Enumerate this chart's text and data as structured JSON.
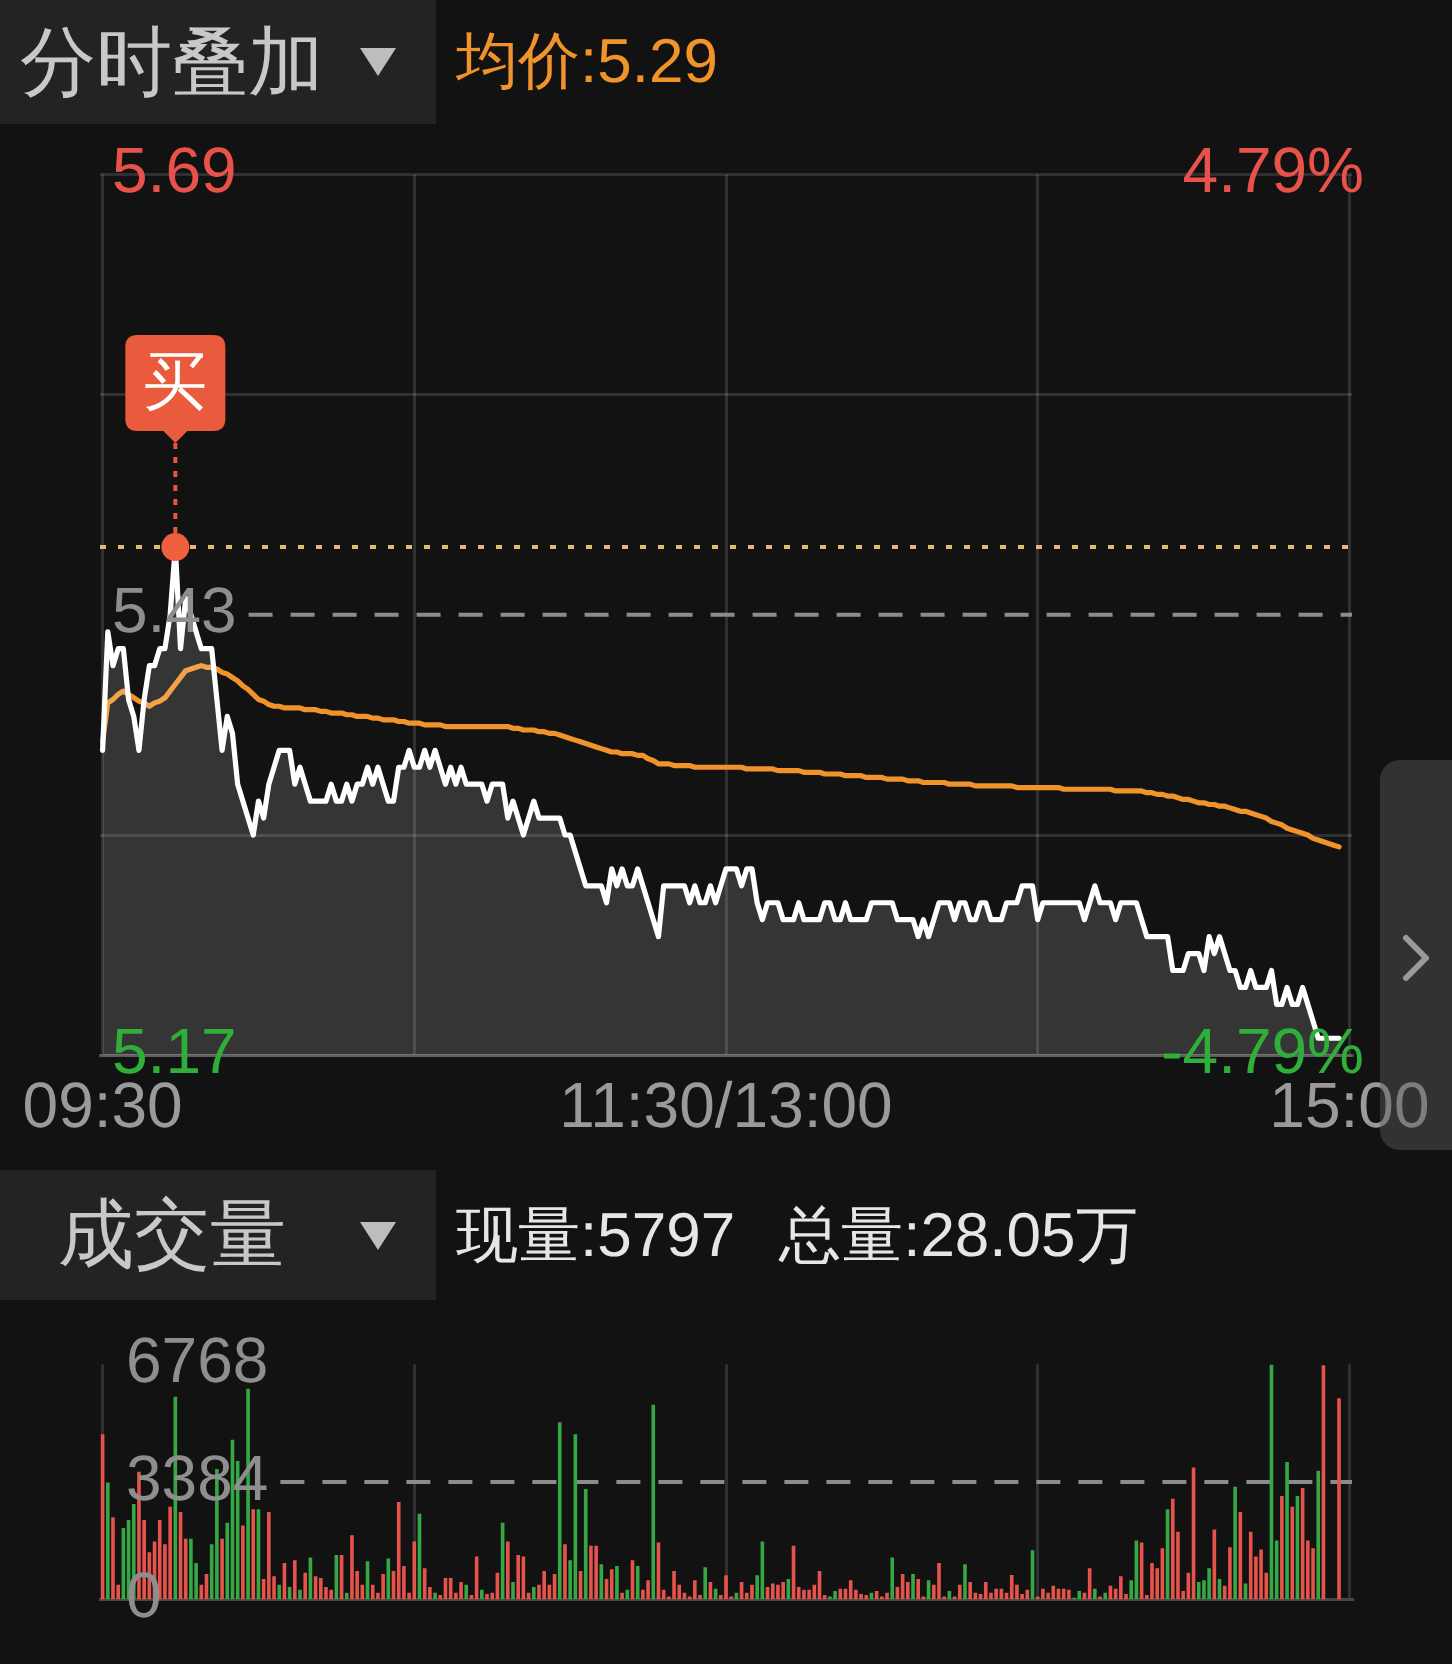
{
  "chart_data": [
    {
      "type": "line",
      "title": "分时叠加",
      "legend": "top left",
      "marker": "none",
      "grid": true,
      "categories": [
        "09:30",
        null,
        null,
        null,
        null,
        null,
        null,
        null,
        null,
        null,
        null,
        null,
        null,
        null,
        null,
        null,
        null,
        null,
        null,
        null,
        null,
        null,
        null,
        null,
        null,
        null,
        null,
        null,
        null,
        null,
        null,
        null,
        null,
        null,
        null,
        null,
        null,
        null,
        null,
        null,
        null,
        null,
        null,
        null,
        null,
        null,
        null,
        null,
        null,
        null,
        null,
        null,
        null,
        null,
        null,
        null,
        null,
        null,
        null,
        null,
        null,
        null,
        null,
        null,
        null,
        null,
        null,
        null,
        null,
        null,
        null,
        null,
        null,
        null,
        null,
        null,
        null,
        null,
        null,
        null,
        null,
        null,
        null,
        null,
        null,
        null,
        null,
        null,
        null,
        null,
        null,
        null,
        null,
        null,
        null,
        null,
        null,
        null,
        null,
        null,
        null,
        null,
        null,
        null,
        null,
        null,
        null,
        null,
        null,
        null,
        null,
        null,
        null,
        null,
        null,
        null,
        null,
        null,
        null,
        null,
        "11:30/13:00",
        null,
        null,
        null,
        null,
        null,
        null,
        null,
        null,
        null,
        null,
        null,
        null,
        null,
        null,
        null,
        null,
        null,
        null,
        null,
        null,
        null,
        null,
        null,
        null,
        null,
        null,
        null,
        null,
        null,
        null,
        null,
        null,
        null,
        null,
        null,
        null,
        null,
        null,
        null,
        null,
        null,
        null,
        null,
        null,
        null,
        null,
        null,
        null,
        null,
        null,
        null,
        null,
        null,
        null,
        null,
        null,
        null,
        null,
        null,
        null,
        null,
        null,
        null,
        null,
        null,
        null,
        null,
        null,
        null,
        null,
        null,
        null,
        null,
        null,
        null,
        null,
        null,
        null,
        null,
        null,
        null,
        null,
        null,
        null,
        null,
        null,
        null,
        null,
        null,
        null,
        null,
        null,
        null,
        null,
        null,
        null,
        null,
        null,
        null,
        null,
        null,
        null,
        null,
        null,
        null,
        null,
        null,
        null,
        null,
        null,
        null,
        null,
        null,
        null,
        null,
        null,
        null,
        null,
        null,
        "15:00"
      ],
      "series": [
        {
          "type": "area",
          "color": "#ffffff",
          "values": [
            5.35,
            5.42,
            5.4,
            5.41,
            5.41,
            5.38,
            5.37,
            5.35,
            5.38,
            5.4,
            5.4,
            5.41,
            5.41,
            5.43,
            5.47,
            5.41,
            5.44,
            5.43,
            5.42,
            5.41,
            5.41,
            5.41,
            5.38,
            5.35,
            5.37,
            5.36,
            5.33,
            5.32,
            5.31,
            5.3,
            5.32,
            5.31,
            5.33,
            5.34,
            5.35,
            5.35,
            5.35,
            5.33,
            5.34,
            5.33,
            5.32,
            5.32,
            5.32,
            5.32,
            5.33,
            5.32,
            5.32,
            5.33,
            5.32,
            5.33,
            5.33,
            5.34,
            5.33,
            5.34,
            5.33,
            5.32,
            5.32,
            5.34,
            5.34,
            5.35,
            5.34,
            5.34,
            5.35,
            5.34,
            5.35,
            5.34,
            5.33,
            5.34,
            5.33,
            5.34,
            5.33,
            5.33,
            5.33,
            5.33,
            5.32,
            5.33,
            5.33,
            5.33,
            5.31,
            5.32,
            5.31,
            5.3,
            5.31,
            5.32,
            5.31,
            5.31,
            5.31,
            5.31,
            5.31,
            5.3,
            5.3,
            5.29,
            5.28,
            5.27,
            5.27,
            5.27,
            5.27,
            5.26,
            5.28,
            5.27,
            5.28,
            5.27,
            5.27,
            5.28,
            5.27,
            5.26,
            5.25,
            5.24,
            5.27,
            5.27,
            5.27,
            5.27,
            5.27,
            5.26,
            5.27,
            5.26,
            5.26,
            5.27,
            5.26,
            5.27,
            5.28,
            5.28,
            5.28,
            5.27,
            5.28,
            5.28,
            5.26,
            5.25,
            5.26,
            5.26,
            5.26,
            5.25,
            5.25,
            5.25,
            5.26,
            5.25,
            5.25,
            5.25,
            5.25,
            5.26,
            5.26,
            5.25,
            5.25,
            5.26,
            5.25,
            5.25,
            5.25,
            5.25,
            5.26,
            5.26,
            5.26,
            5.26,
            5.26,
            5.25,
            5.25,
            5.25,
            5.25,
            5.24,
            5.25,
            5.24,
            5.25,
            5.26,
            5.26,
            5.26,
            5.25,
            5.26,
            5.26,
            5.25,
            5.25,
            5.26,
            5.26,
            5.25,
            5.25,
            5.25,
            5.26,
            5.26,
            5.26,
            5.27,
            5.27,
            5.27,
            5.25,
            5.26,
            5.26,
            5.26,
            5.26,
            5.26,
            5.26,
            5.26,
            5.26,
            5.25,
            5.26,
            5.27,
            5.26,
            5.26,
            5.26,
            5.25,
            5.26,
            5.26,
            5.26,
            5.26,
            5.25,
            5.24,
            5.24,
            5.24,
            5.24,
            5.24,
            5.22,
            5.22,
            5.22,
            5.23,
            5.23,
            5.23,
            5.22,
            5.24,
            5.23,
            5.24,
            5.23,
            5.22,
            5.22,
            5.21,
            5.21,
            5.22,
            5.21,
            5.21,
            5.21,
            5.22,
            5.2,
            5.2,
            5.21,
            5.2,
            5.2,
            5.21,
            5.2,
            5.19,
            5.18,
            5.18,
            5.18,
            5.18,
            5.18,
            null,
            null
          ]
        },
        {
          "type": "line",
          "name": "均价:5.29",
          "color": "#f0932b",
          "values": [
            5.355,
            5.378,
            5.38,
            5.383,
            5.385,
            5.383,
            5.381,
            5.379,
            5.378,
            5.376,
            5.378,
            5.379,
            5.381,
            5.385,
            5.389,
            5.393,
            5.397,
            5.398,
            5.399,
            5.4,
            5.399,
            5.399,
            5.398,
            5.396,
            5.395,
            5.393,
            5.391,
            5.388,
            5.386,
            5.383,
            5.38,
            5.379,
            5.377,
            5.376,
            5.376,
            5.375,
            5.375,
            5.375,
            5.375,
            5.374,
            5.374,
            5.374,
            5.373,
            5.373,
            5.372,
            5.372,
            5.372,
            5.371,
            5.371,
            5.37,
            5.37,
            5.37,
            5.369,
            5.369,
            5.368,
            5.368,
            5.368,
            5.367,
            5.367,
            5.366,
            5.366,
            5.366,
            5.365,
            5.365,
            5.365,
            5.365,
            5.364,
            5.364,
            5.364,
            5.364,
            5.364,
            5.364,
            5.364,
            5.364,
            5.364,
            5.364,
            5.364,
            5.364,
            5.364,
            5.363,
            5.363,
            5.362,
            5.362,
            5.362,
            5.361,
            5.361,
            5.36,
            5.36,
            5.359,
            5.358,
            5.357,
            5.356,
            5.355,
            5.354,
            5.353,
            5.352,
            5.351,
            5.35,
            5.349,
            5.349,
            5.348,
            5.348,
            5.348,
            5.347,
            5.347,
            5.345,
            5.344,
            5.342,
            5.342,
            5.342,
            5.341,
            5.341,
            5.341,
            5.341,
            5.34,
            5.34,
            5.34,
            5.34,
            5.34,
            5.34,
            5.34,
            5.34,
            5.34,
            5.34,
            5.339,
            5.339,
            5.339,
            5.339,
            5.339,
            5.339,
            5.338,
            5.338,
            5.338,
            5.338,
            5.338,
            5.337,
            5.337,
            5.337,
            5.337,
            5.336,
            5.336,
            5.336,
            5.336,
            5.335,
            5.335,
            5.335,
            5.335,
            5.334,
            5.334,
            5.334,
            5.334,
            5.333,
            5.333,
            5.333,
            5.333,
            5.332,
            5.332,
            5.332,
            5.331,
            5.331,
            5.331,
            5.331,
            5.331,
            5.33,
            5.33,
            5.33,
            5.33,
            5.33,
            5.329,
            5.329,
            5.329,
            5.329,
            5.329,
            5.329,
            5.329,
            5.329,
            5.328,
            5.328,
            5.328,
            5.328,
            5.328,
            5.328,
            5.328,
            5.328,
            5.328,
            5.327,
            5.327,
            5.327,
            5.327,
            5.327,
            5.327,
            5.327,
            5.327,
            5.327,
            5.327,
            5.326,
            5.326,
            5.326,
            5.326,
            5.326,
            5.326,
            5.325,
            5.325,
            5.324,
            5.324,
            5.323,
            5.323,
            5.322,
            5.321,
            5.321,
            5.32,
            5.319,
            5.319,
            5.318,
            5.318,
            5.317,
            5.317,
            5.316,
            5.315,
            5.314,
            5.314,
            5.313,
            5.312,
            5.311,
            5.31,
            5.308,
            5.307,
            5.306,
            5.304,
            5.303,
            5.302,
            5.301,
            5.3,
            5.298,
            5.297,
            5.296,
            5.295,
            5.294,
            5.293,
            null,
            null
          ]
        }
      ],
      "ylim": [
        5.17,
        5.69
      ],
      "yticks": [
        5.17,
        {
          "value": 5.3,
          "label": null
        },
        5.43,
        {
          "value": 5.56,
          "label": null
        },
        5.69
      ],
      "y2lim": [
        -4.79,
        4.79
      ],
      "y2ticks": [
        {
          "value": -4.79,
          "label": "-4.79%"
        },
        {
          "value": 4.79,
          "label": "4.79%"
        }
      ],
      "ref_lines": [
        {
          "axis": "y",
          "value": 5.43,
          "color": "#8c8c8c",
          "line_style": "dashed"
        },
        {
          "axis": "y",
          "value": 5.47,
          "color": "#e9b870",
          "line_style": "dotted"
        }
      ],
      "annotations": [
        {
          "text": "买",
          "y": 5.47
        }
      ]
    },
    {
      "type": "bar",
      "title": "成交量",
      "annotations": [
        "现量:5797",
        "总量:28.05万"
      ],
      "categories": [
        null,
        null,
        null,
        null,
        null,
        null,
        null,
        null,
        null,
        null,
        null,
        null,
        null,
        null,
        null,
        null,
        null,
        null,
        null,
        null,
        null,
        null,
        null,
        null,
        null,
        null,
        null,
        null,
        null,
        null,
        null,
        null,
        null,
        null,
        null,
        null,
        null,
        null,
        null,
        null,
        null,
        null,
        null,
        null,
        null,
        null,
        null,
        null,
        null,
        null,
        null,
        null,
        null,
        null,
        null,
        null,
        null,
        null,
        null,
        null,
        null,
        null,
        null,
        null,
        null,
        null,
        null,
        null,
        null,
        null,
        null,
        null,
        null,
        null,
        null,
        null,
        null,
        null,
        null,
        null,
        null,
        null,
        null,
        null,
        null,
        null,
        null,
        null,
        null,
        null,
        null,
        null,
        null,
        null,
        null,
        null,
        null,
        null,
        null,
        null,
        null,
        null,
        null,
        null,
        null,
        null,
        null,
        null,
        null,
        null,
        null,
        null,
        null,
        null,
        null,
        null,
        null,
        null,
        null,
        null,
        null,
        null,
        null,
        null,
        null,
        null,
        null,
        null,
        null,
        null,
        null,
        null,
        null,
        null,
        null,
        null,
        null,
        null,
        null,
        null,
        null,
        null,
        null,
        null,
        null,
        null,
        null,
        null,
        null,
        null,
        null,
        null,
        null,
        null,
        null,
        null,
        null,
        null,
        null,
        null,
        null,
        null,
        null,
        null,
        null,
        null,
        null,
        null,
        null,
        null,
        null,
        null,
        null,
        null,
        null,
        null,
        null,
        null,
        null,
        null,
        null,
        null,
        null,
        null,
        null,
        null,
        null,
        null,
        null,
        null,
        null,
        null,
        null,
        null,
        null,
        null,
        null,
        null,
        null,
        null,
        null,
        null,
        null,
        null,
        null,
        null,
        null,
        null,
        null,
        null,
        null,
        null,
        null,
        null,
        null,
        null,
        null,
        null,
        null,
        null,
        null,
        null,
        null,
        null,
        null,
        null,
        null,
        null,
        null,
        null,
        null,
        null,
        null,
        null,
        null,
        null,
        null,
        null,
        null,
        null,
        null
      ],
      "values": [
        4760,
        3370,
        2370,
        430,
        2060,
        2290,
        2750,
        3680,
        2290,
        1360,
        1670,
        2290,
        1590,
        2670,
        5840,
        2520,
        1750,
        1750,
        1050,
        430,
        740,
        1590,
        3760,
        1750,
        2210,
        4600,
        3990,
        2130,
        6070,
        2600,
        2600,
        590,
        2520,
        670,
        430,
        1050,
        360,
        1130,
        280,
        770,
        1210,
        670,
        620,
        360,
        280,
        1280,
        1280,
        200,
        1850,
        820,
        430,
        1100,
        430,
        200,
        740,
        1180,
        820,
        2810,
        970,
        200,
        1670,
        2470,
        900,
        360,
        200,
        130,
        620,
        620,
        200,
        510,
        430,
        130,
        1240,
        280,
        160,
        200,
        770,
        2210,
        1670,
        510,
        1280,
        1240,
        200,
        360,
        430,
        820,
        430,
        740,
        5100,
        1590,
        1130,
        4760,
        820,
        3180,
        1550,
        1550,
        1020,
        590,
        870,
        970,
        200,
        280,
        1130,
        970,
        280,
        560,
        5610,
        1640,
        280,
        90,
        820,
        430,
        200,
        90,
        560,
        130,
        930,
        510,
        310,
        130,
        700,
        90,
        200,
        510,
        200,
        430,
        700,
        1670,
        360,
        460,
        430,
        510,
        590,
        1550,
        360,
        280,
        280,
        430,
        820,
        130,
        90,
        250,
        310,
        310,
        560,
        280,
        160,
        130,
        200,
        250,
        90,
        200,
        1210,
        360,
        740,
        510,
        740,
        590,
        90,
        560,
        430,
        1050,
        90,
        250,
        90,
        430,
        1020,
        510,
        200,
        160,
        510,
        200,
        310,
        310,
        200,
        710,
        430,
        160,
        280,
        1420,
        90,
        310,
        200,
        400,
        310,
        310,
        280,
        50,
        250,
        200,
        900,
        310,
        90,
        200,
        400,
        310,
        670,
        160,
        560,
        1700,
        1640,
        130,
        1050,
        900,
        1480,
        2600,
        2900,
        1950,
        250,
        770,
        3800,
        510,
        560,
        900,
        2020,
        590,
        400,
        1510,
        3250,
        2520,
        460,
        1950,
        1240,
        1440,
        770,
        6768,
        1700,
        2980,
        3960,
        2670,
        2980,
        3210,
        1700,
        1480,
        3710,
        6740,
        null,
        null,
        5797,
        null,
        null
      ],
      "colors": [
        "#e5534b",
        "#35a843",
        "#e5534b",
        "#e5534b",
        "#35a843",
        "#35a843",
        "#35a843",
        "#e5534b",
        "#e5534b",
        "#e5534b",
        "#e5534b",
        "#e5534b",
        "#e5534b",
        "#e5534b",
        "#35a843",
        "#e5534b",
        "#e5534b",
        "#35a843",
        "#35a843",
        "#e5534b",
        "#e5534b",
        "#35a843",
        "#35a843",
        "#e5534b",
        "#35a843",
        "#35a843",
        "#35a843",
        "#e5534b",
        "#35a843",
        "#e5534b",
        "#35a843",
        "#e5534b",
        "#e5534b",
        "#e5534b",
        "#35a843",
        "#e5534b",
        "#35a843",
        "#e5534b",
        "#35a843",
        "#e5534b",
        "#35a843",
        "#e5534b",
        "#e5534b",
        "#e5534b",
        "#e5534b",
        "#35a843",
        "#e5534b",
        "#35a843",
        "#e5534b",
        "#e5534b",
        "#e5534b",
        "#35a843",
        "#e5534b",
        "#e5534b",
        "#e5534b",
        "#35a843",
        "#e5534b",
        "#e5534b",
        "#e5534b",
        "#e5534b",
        "#e5534b",
        "#35a843",
        "#e5534b",
        "#e5534b",
        "#35a843",
        "#e5534b",
        "#e5534b",
        "#e5534b",
        "#e5534b",
        "#e5534b",
        "#35a843",
        "#e5534b",
        "#e5534b",
        "#35a843",
        "#e5534b",
        "#e5534b",
        "#e5534b",
        "#35a843",
        "#e5534b",
        "#35a843",
        "#e5534b",
        "#e5534b",
        "#e5534b",
        "#35a843",
        "#e5534b",
        "#e5534b",
        "#e5534b",
        "#e5534b",
        "#35a843",
        "#e5534b",
        "#35a843",
        "#35a843",
        "#e5534b",
        "#35a843",
        "#e5534b",
        "#e5534b",
        "#35a843",
        "#e5534b",
        "#e5534b",
        "#35a843",
        "#e5534b",
        "#35a843",
        "#e5534b",
        "#35a843",
        "#e5534b",
        "#e5534b",
        "#35a843",
        "#e5534b",
        "#e5534b",
        "#e5534b",
        "#e5534b",
        "#e5534b",
        "#e5534b",
        "#e5534b",
        "#e5534b",
        "#e5534b",
        "#35a843",
        "#e5534b",
        "#35a843",
        "#e5534b",
        "#e5534b",
        "#e5534b",
        "#35a843",
        "#e5534b",
        "#e5534b",
        "#e5534b",
        "#35a843",
        "#35a843",
        "#e5534b",
        "#e5534b",
        "#e5534b",
        "#e5534b",
        "#35a843",
        "#e5534b",
        "#e5534b",
        "#e5534b",
        "#e5534b",
        "#e5534b",
        "#e5534b",
        "#e5534b",
        "#35a843",
        "#35a843",
        "#e5534b",
        "#e5534b",
        "#e5534b",
        "#e5534b",
        "#e5534b",
        "#e5534b",
        "#35a843",
        "#e5534b",
        "#e5534b",
        "#e5534b",
        "#35a843",
        "#e5534b",
        "#e5534b",
        "#e5534b",
        "#35a843",
        "#e5534b",
        "#e5534b",
        "#35a843",
        "#e5534b",
        "#e5534b",
        "#e5534b",
        "#35a843",
        "#e5534b",
        "#e5534b",
        "#35a843",
        "#e5534b",
        "#e5534b",
        "#e5534b",
        "#e5534b",
        "#e5534b",
        "#e5534b",
        "#e5534b",
        "#e5534b",
        "#e5534b",
        "#e5534b",
        "#e5534b",
        "#e5534b",
        "#35a843",
        "#e5534b",
        "#e5534b",
        "#e5534b",
        "#e5534b",
        "#e5534b",
        "#e5534b",
        "#e5534b",
        "#35a843",
        "#35a843",
        "#e5534b",
        "#e5534b",
        "#35a843",
        "#e5534b",
        "#35a843",
        "#e5534b",
        "#e5534b",
        "#e5534b",
        "#e5534b",
        "#35a843",
        "#35a843",
        "#e5534b",
        "#e5534b",
        "#e5534b",
        "#e5534b",
        "#e5534b",
        "#35a843",
        "#e5534b",
        "#e5534b",
        "#e5534b",
        "#e5534b",
        "#e5534b",
        "#35a843",
        "#35a843",
        "#35a843",
        "#e5534b",
        "#35a843",
        "#e5534b",
        "#e5534b",
        "#35a843",
        "#e5534b",
        "#35a843",
        "#e5534b",
        "#e5534b",
        "#e5534b",
        "#e5534b",
        "#35a843",
        "#35a843",
        "#e5534b",
        "#35a843",
        "#e5534b",
        "#35a843",
        "#e5534b",
        "#e5534b",
        "#e5534b",
        "#35a843",
        "#e5534b",
        "#e5534b",
        "#e5534b",
        "#e5534b",
        "#e5534b",
        "#e5534b"
      ],
      "ylim": [
        0,
        6768
      ],
      "yticks": [
        0,
        3384,
        6768
      ],
      "tick_labels": "y",
      "grid": "x",
      "ref_lines": [
        {
          "axis": "y",
          "value": 3384,
          "color": "#8c8c8c",
          "line_style": "dashed"
        }
      ]
    }
  ]
}
